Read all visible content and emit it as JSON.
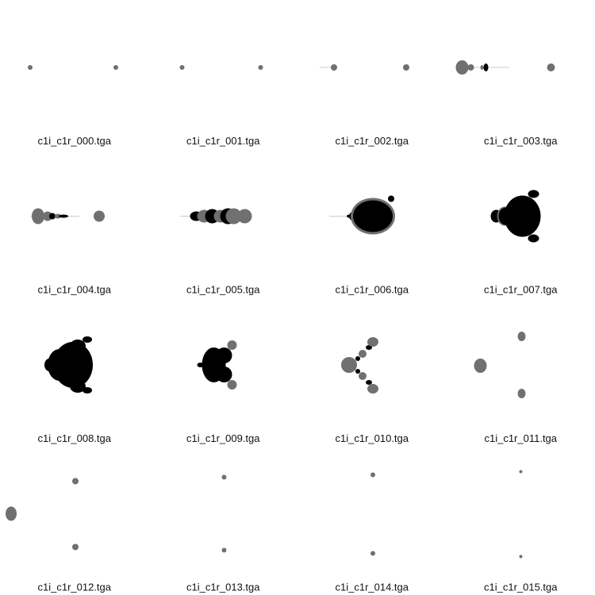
{
  "files": [
    {
      "name": "c1i_c1r_000.tga"
    },
    {
      "name": "c1i_c1r_001.tga"
    },
    {
      "name": "c1i_c1r_002.tga"
    },
    {
      "name": "c1i_c1r_003.tga"
    },
    {
      "name": "c1i_c1r_004.tga"
    },
    {
      "name": "c1i_c1r_005.tga"
    },
    {
      "name": "c1i_c1r_006.tga"
    },
    {
      "name": "c1i_c1r_007.tga"
    },
    {
      "name": "c1i_c1r_008.tga"
    },
    {
      "name": "c1i_c1r_009.tga"
    },
    {
      "name": "c1i_c1r_010.tga"
    },
    {
      "name": "c1i_c1r_011.tga"
    },
    {
      "name": "c1i_c1r_012.tga"
    },
    {
      "name": "c1i_c1r_013.tga"
    },
    {
      "name": "c1i_c1r_014.tga"
    },
    {
      "name": "c1i_c1r_015.tga"
    }
  ]
}
